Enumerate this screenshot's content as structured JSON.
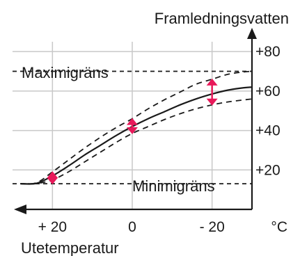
{
  "chart_data": {
    "type": "line",
    "title": "",
    "xlabel": "Utetemperatur",
    "ylabel": "Framledningsvatten",
    "x_unit": "°C",
    "x_axis_direction": "reversed",
    "xlim": [
      30,
      -30
    ],
    "ylim": [
      0,
      85
    ],
    "grid": true,
    "x_ticks": [
      {
        "value": 20,
        "label": "+ 20"
      },
      {
        "value": 0,
        "label": "0"
      },
      {
        "value": -20,
        "label": "- 20"
      }
    ],
    "y_ticks": [
      {
        "value": 20,
        "label": "+20"
      },
      {
        "value": 40,
        "label": "+40"
      },
      {
        "value": 60,
        "label": "+60"
      },
      {
        "value": 80,
        "label": "+80"
      }
    ],
    "limits": [
      {
        "label": "Maximigräns",
        "value": 70
      },
      {
        "label": "Minimigräns",
        "value": 13
      }
    ],
    "series": [
      {
        "style": "solid",
        "x": [
          28,
          24,
          20,
          16,
          12,
          8,
          4,
          0,
          -4,
          -8,
          -12,
          -16,
          -20,
          -24,
          -28,
          -30
        ],
        "y": [
          13,
          13.2,
          17,
          22,
          27.5,
          32.5,
          37.5,
          42,
          46,
          49.5,
          53,
          56,
          58.5,
          60.5,
          61.7,
          62
        ]
      },
      {
        "style": "dashed",
        "x": [
          28,
          24,
          20,
          16,
          12,
          8,
          4,
          0,
          -4,
          -8,
          -12,
          -16,
          -20,
          -24,
          -28,
          -30
        ],
        "y": [
          13,
          13.5,
          19,
          25,
          31,
          36.5,
          41.5,
          46,
          51,
          55.5,
          59.5,
          63.5,
          66,
          68.5,
          69.7,
          70
        ]
      },
      {
        "style": "dashed",
        "x": [
          28,
          24,
          20,
          16,
          12,
          8,
          4,
          0,
          -4,
          -8,
          -12,
          -16,
          -20,
          -24,
          -28,
          -30
        ],
        "y": [
          13,
          13.1,
          15,
          19,
          24,
          29,
          34,
          38.5,
          42,
          45.5,
          48.5,
          51,
          53,
          54.5,
          55.5,
          56
        ]
      }
    ],
    "adjustments": [
      {
        "x": 20,
        "y_from": 13,
        "y_to": 19
      },
      {
        "x": 0,
        "y_from": 38.5,
        "y_to": 46
      },
      {
        "x": -20,
        "y_from": 53,
        "y_to": 66
      }
    ],
    "colors": {
      "line": "#1a1a1a",
      "grid": "#c8c8c8",
      "arrow": "#e8195a"
    }
  }
}
